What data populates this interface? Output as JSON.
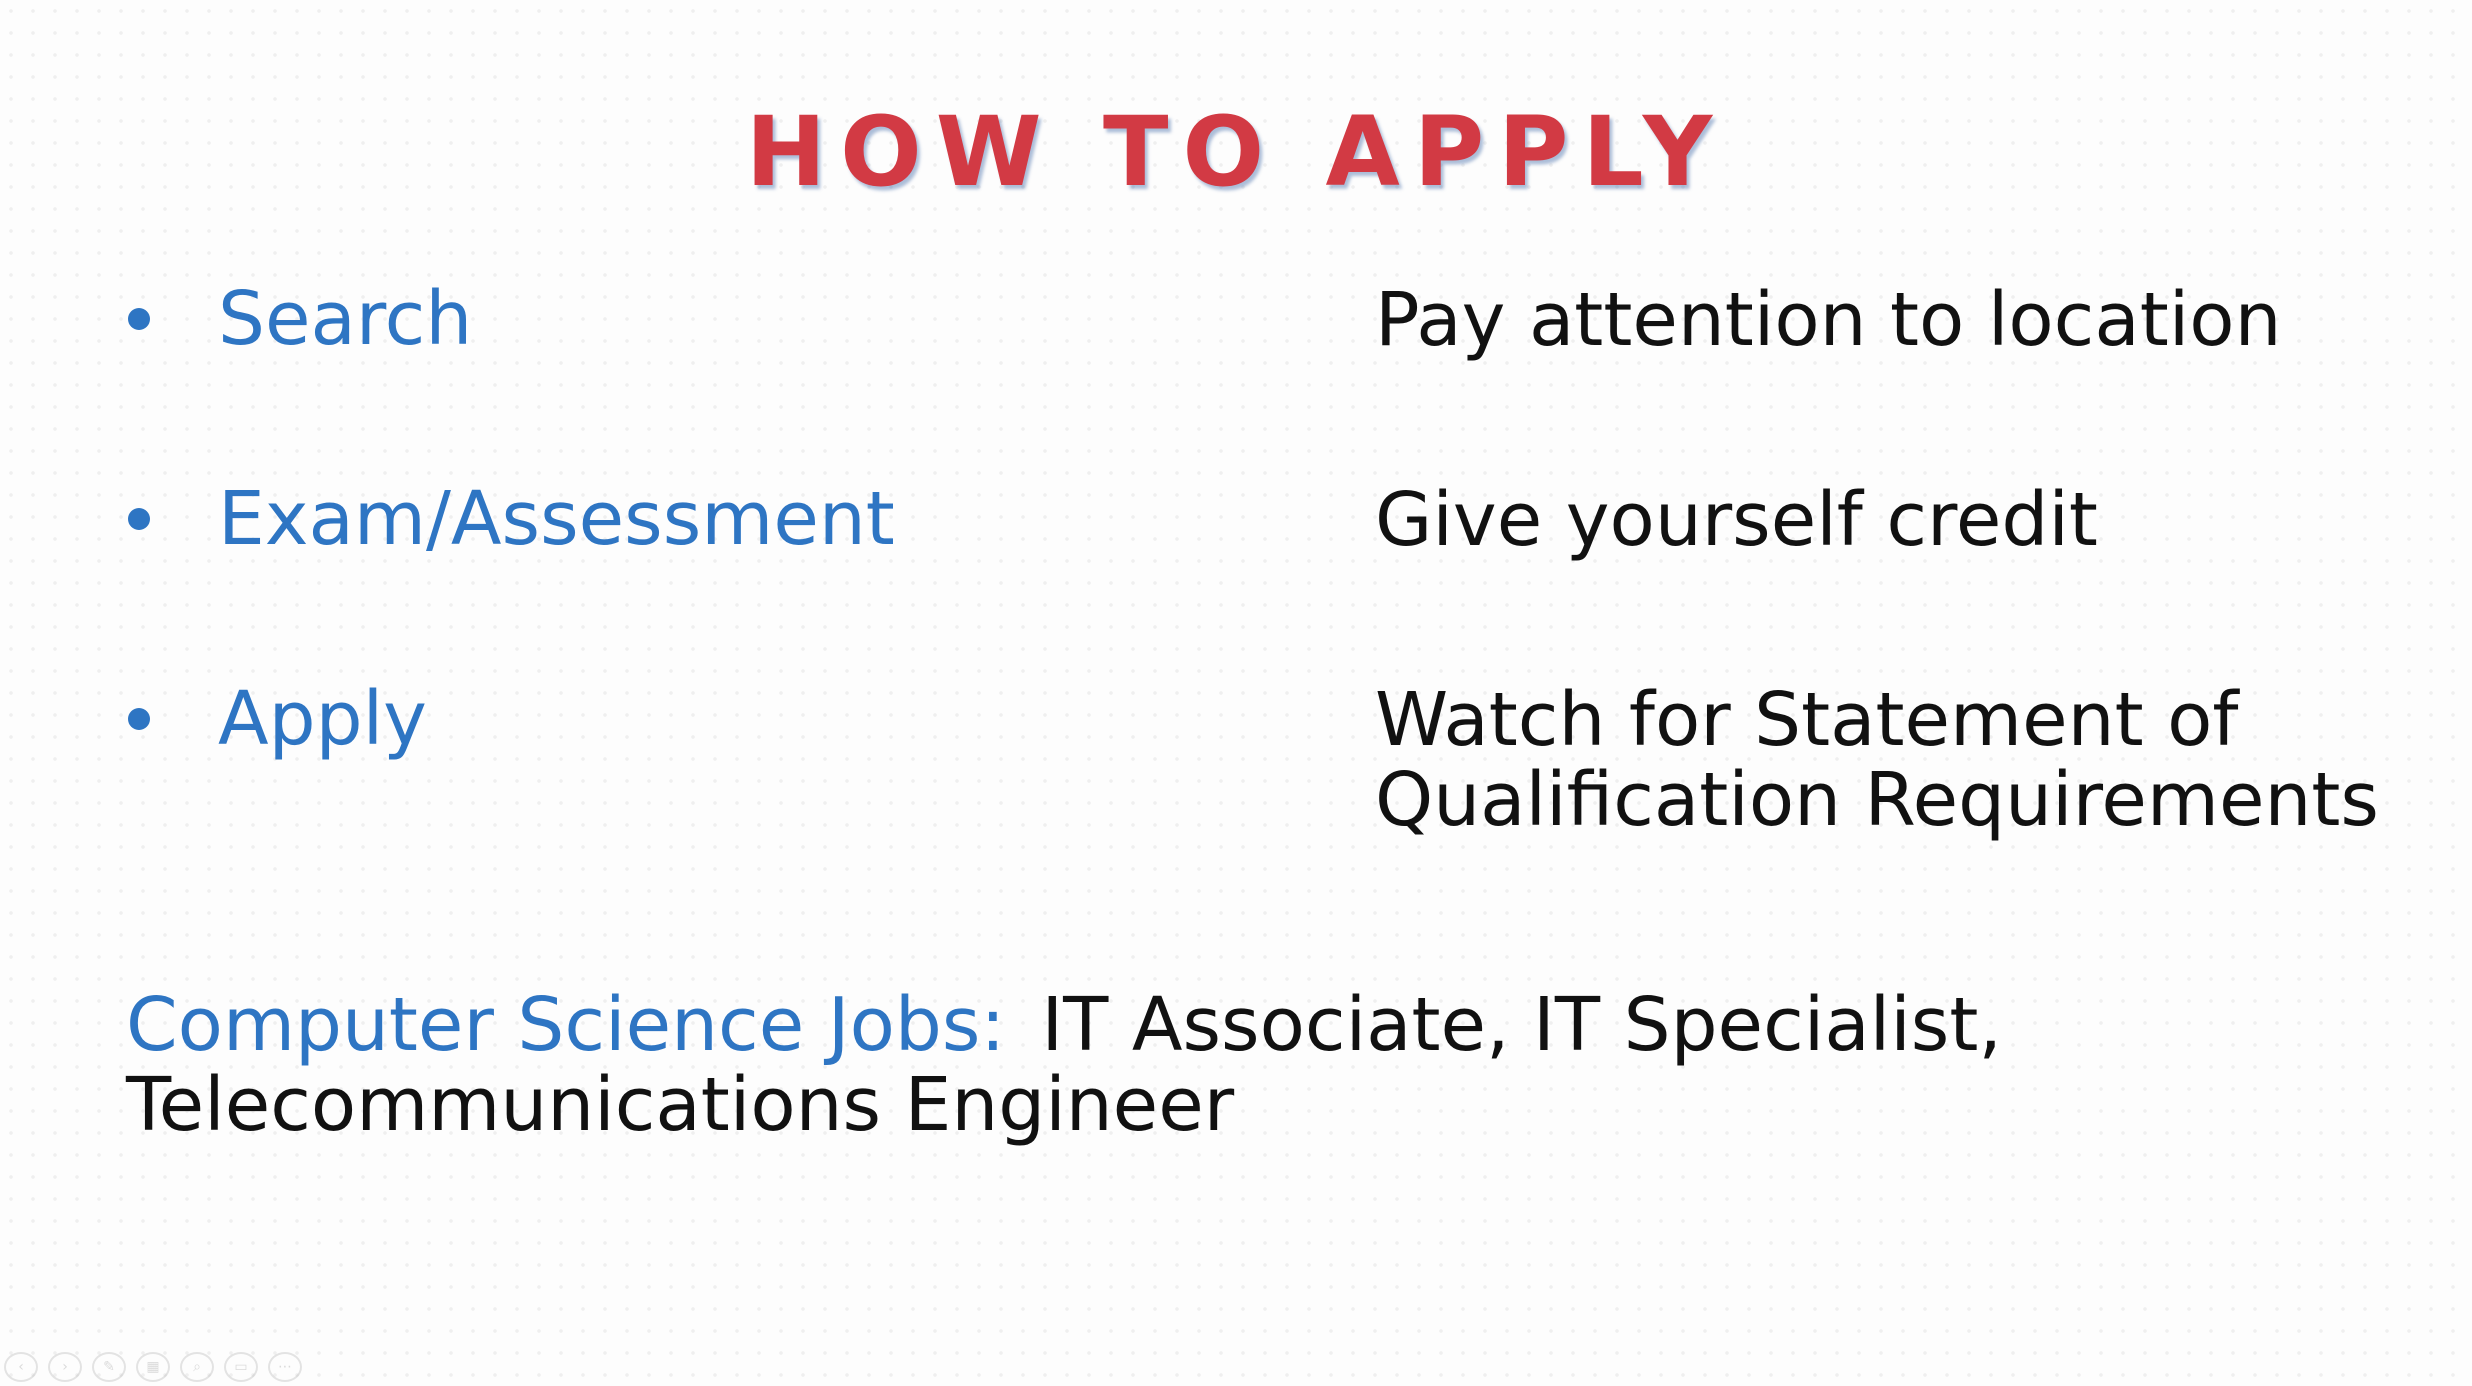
{
  "slide": {
    "title": "HOW TO APPLY",
    "steps": [
      {
        "label": "Search",
        "note": [
          "Pay attention to location"
        ]
      },
      {
        "label": "Exam/Assessment",
        "note": [
          "Give yourself credit"
        ]
      },
      {
        "label": "Apply",
        "note": [
          "Watch for Statement of",
          "Qualification Requirements"
        ]
      }
    ],
    "jobs": {
      "label": "Computer Science Jobs:",
      "line1": "IT Associate, IT Specialist,",
      "line2": "Telecommunications Engineer"
    }
  },
  "toolbar": {
    "buttons": [
      {
        "name": "previous-slide-icon",
        "glyph": "‹"
      },
      {
        "name": "next-slide-icon",
        "glyph": "›"
      },
      {
        "name": "pen-icon",
        "glyph": "✎"
      },
      {
        "name": "slides-grid-icon",
        "glyph": "▦"
      },
      {
        "name": "zoom-icon",
        "glyph": "⌕"
      },
      {
        "name": "subtitles-icon",
        "glyph": "▭"
      },
      {
        "name": "more-options-icon",
        "glyph": "⋯"
      }
    ]
  },
  "colors": {
    "title": "#d23a44",
    "accent": "#2e75c3",
    "text": "#111111"
  }
}
